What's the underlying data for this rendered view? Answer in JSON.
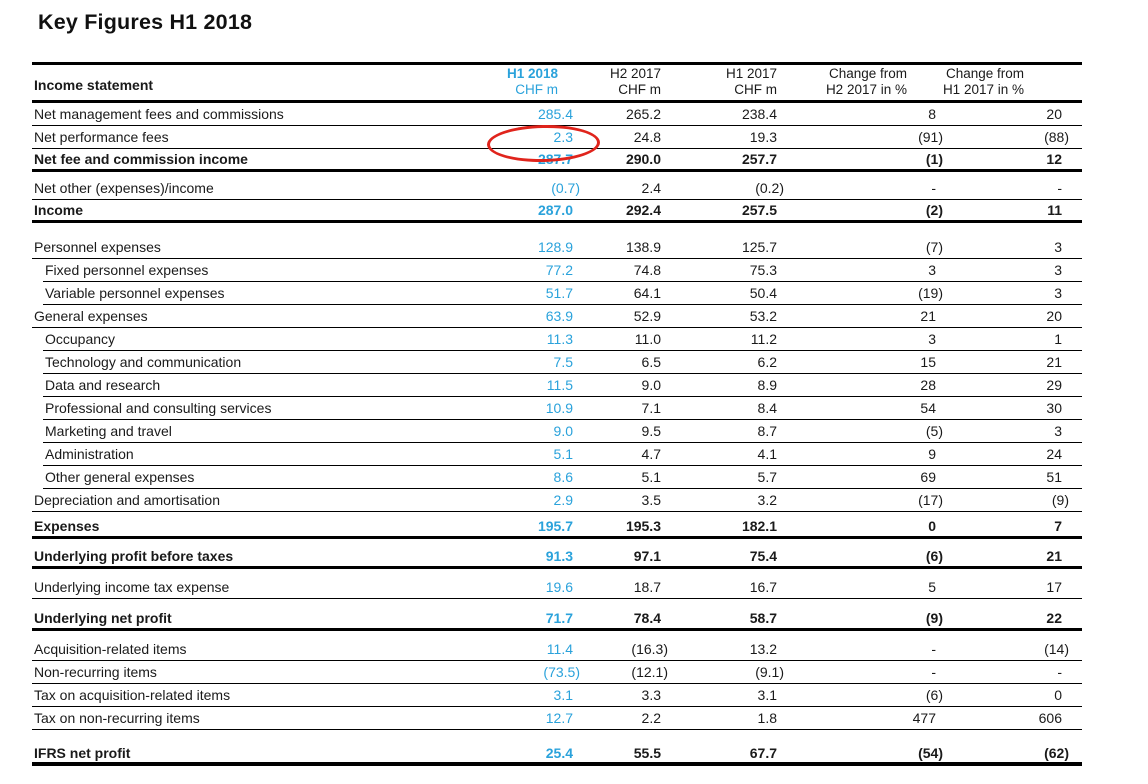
{
  "page_title": "Key Figures H1 2018",
  "colors": {
    "accent_blue": "#2aa2db",
    "annotation_red": "#e0241c",
    "text_black": "#1a1a1a"
  },
  "annotation": {
    "shape": "red-ellipse",
    "target_row": "Net performance fees",
    "target_column": "H1 2018",
    "target_value": "2.3"
  },
  "table": {
    "header": {
      "label": "Income statement",
      "columns": [
        {
          "line1": "H1 2018",
          "line2": "CHF m",
          "highlight": true
        },
        {
          "line1": "H2 2017",
          "line2": "CHF m",
          "highlight": false
        },
        {
          "line1": "H1 2017",
          "line2": "CHF m",
          "highlight": false
        },
        {
          "line1": "Change from",
          "line2": "H2 2017 in %",
          "highlight": false
        },
        {
          "line1": "Change from",
          "line2": "H1 2017 in %",
          "highlight": false
        }
      ]
    },
    "rows": [
      {
        "label": "Net management fees and commissions",
        "values": [
          "285.4",
          "265.2",
          "238.4",
          "8",
          "20"
        ]
      },
      {
        "label": "Net performance fees",
        "values": [
          "2.3",
          "24.8",
          "19.3",
          "(91)",
          "(88)"
        ],
        "circled": true
      },
      {
        "label": "Net fee and commission income",
        "values": [
          "287.7",
          "290.0",
          "257.7",
          "(1)",
          "12"
        ],
        "bold": true
      },
      {
        "label": "Net other (expenses)/income",
        "values": [
          "(0.7)",
          "2.4",
          "(0.2)",
          "-",
          "-"
        ],
        "gap": 5
      },
      {
        "label": "Income",
        "values": [
          "287.0",
          "292.4",
          "257.5",
          "(2)",
          "11"
        ],
        "bold": true
      },
      {
        "label": "Personnel expenses",
        "values": [
          "128.9",
          "138.9",
          "125.7",
          "(7)",
          "3"
        ],
        "gap": 13
      },
      {
        "label": "Fixed personnel expenses",
        "values": [
          "77.2",
          "74.8",
          "75.3",
          "3",
          "3"
        ],
        "indent": true
      },
      {
        "label": "Variable personnel expenses",
        "values": [
          "51.7",
          "64.1",
          "50.4",
          "(19)",
          "3"
        ],
        "indent": true
      },
      {
        "label": "General expenses",
        "values": [
          "63.9",
          "52.9",
          "53.2",
          "21",
          "20"
        ]
      },
      {
        "label": "Occupancy",
        "values": [
          "11.3",
          "11.0",
          "11.2",
          "3",
          "1"
        ],
        "indent": true
      },
      {
        "label": "Technology and communication",
        "values": [
          "7.5",
          "6.5",
          "6.2",
          "15",
          "21"
        ],
        "indent": true
      },
      {
        "label": "Data and research",
        "values": [
          "11.5",
          "9.0",
          "8.9",
          "28",
          "29"
        ],
        "indent": true
      },
      {
        "label": "Professional and consulting services",
        "values": [
          "10.9",
          "7.1",
          "8.4",
          "54",
          "30"
        ],
        "indent": true
      },
      {
        "label": "Marketing and travel",
        "values": [
          "9.0",
          "9.5",
          "8.7",
          "(5)",
          "3"
        ],
        "indent": true
      },
      {
        "label": "Administration",
        "values": [
          "5.1",
          "4.7",
          "4.1",
          "9",
          "24"
        ],
        "indent": true
      },
      {
        "label": "Other general expenses",
        "values": [
          "8.6",
          "5.1",
          "5.7",
          "69",
          "51"
        ],
        "indent": true
      },
      {
        "label": "Depreciation and amortisation",
        "values": [
          "2.9",
          "3.5",
          "3.2",
          "(17)",
          "(9)"
        ]
      },
      {
        "label": "Expenses",
        "values": [
          "195.7",
          "195.3",
          "182.1",
          "0",
          "7"
        ],
        "bold": true,
        "gap": 4
      },
      {
        "label": "Underlying profit before taxes",
        "values": [
          "91.3",
          "97.1",
          "75.4",
          "(6)",
          "21"
        ],
        "bold": true,
        "gap": 7
      },
      {
        "label": "Underlying income tax expense",
        "values": [
          "19.6",
          "18.7",
          "16.7",
          "5",
          "17"
        ],
        "gap": 7
      },
      {
        "label": "Underlying net profit",
        "values": [
          "71.7",
          "78.4",
          "58.7",
          "(9)",
          "22"
        ],
        "bold": true,
        "gap": 9
      },
      {
        "label": "Acquisition-related items",
        "values": [
          "11.4",
          "(16.3)",
          "13.2",
          "-",
          "(14)"
        ],
        "gap": 7
      },
      {
        "label": "Non-recurring items",
        "values": [
          "(73.5)",
          "(12.1)",
          "(9.1)",
          "-",
          "-"
        ]
      },
      {
        "label": "Tax on acquisition-related items",
        "values": [
          "3.1",
          "3.3",
          "3.1",
          "(6)",
          "0"
        ]
      },
      {
        "label": "Tax on non-recurring items",
        "values": [
          "12.7",
          "2.2",
          "1.8",
          "477",
          "606"
        ]
      },
      {
        "label": "IFRS net profit",
        "values": [
          "25.4",
          "55.5",
          "67.7",
          "(54)",
          "(62)"
        ],
        "bold": true,
        "heavy": true,
        "gap": 13
      }
    ]
  }
}
